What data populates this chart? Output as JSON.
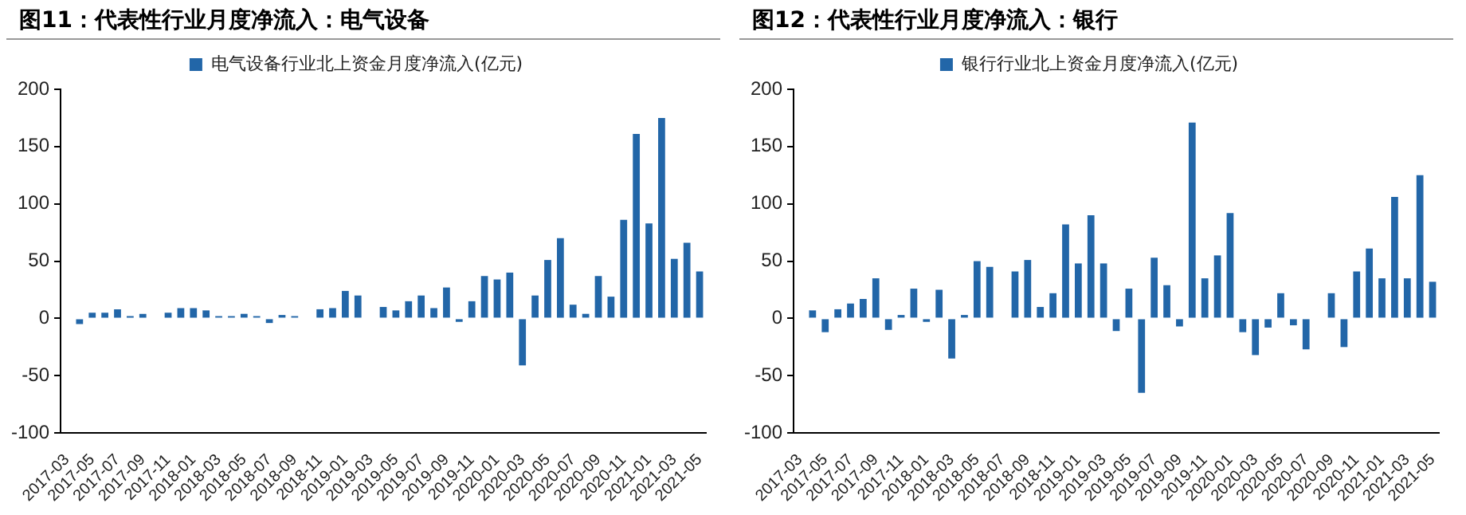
{
  "chart_data": [
    {
      "type": "bar",
      "title": "图11：代表性行业月度净流入：电气设备",
      "categories": [
        "2017-03",
        null,
        "2017-05",
        null,
        "2017-07",
        null,
        "2017-09",
        null,
        "2017-11",
        null,
        "2018-01",
        null,
        "2018-03",
        null,
        "2018-05",
        null,
        "2018-07",
        null,
        "2018-09",
        null,
        "2018-11",
        null,
        "2019-01",
        null,
        "2019-03",
        null,
        "2019-05",
        null,
        "2019-07",
        null,
        "2019-09",
        null,
        "2019-11",
        null,
        "2020-01",
        null,
        "2020-03",
        null,
        "2020-05",
        null,
        "2020-07",
        null,
        "2020-09",
        null,
        "2020-11",
        null,
        "2021-01",
        null,
        "2021-03",
        null,
        "2021-05"
      ],
      "series": [
        {
          "name": "电气设备行业北上资金月度净流入(亿元)",
          "color": "#2266a8",
          "values": [
            0,
            -5,
            5,
            5,
            8,
            2,
            4,
            0,
            5,
            9,
            9,
            7,
            2,
            2,
            4,
            2,
            -4,
            3,
            2,
            0,
            8,
            9,
            24,
            20,
            0,
            10,
            7,
            15,
            20,
            9,
            27,
            -3,
            15,
            37,
            34,
            40,
            -41,
            20,
            51,
            70,
            12,
            4,
            37,
            19,
            86,
            161,
            83,
            175,
            52,
            66,
            41
          ]
        }
      ],
      "ylim": [
        -100,
        200
      ],
      "yticks": [
        -100,
        -50,
        0,
        50,
        100,
        150,
        200
      ],
      "grid": false,
      "legend": "top"
    },
    {
      "type": "bar",
      "title": "图12：代表性行业月度净流入：银行",
      "categories": [
        "2017-03",
        null,
        "2017-05",
        null,
        "2017-07",
        null,
        "2017-09",
        null,
        "2017-11",
        null,
        "2018-01",
        null,
        "2018-03",
        null,
        "2018-05",
        null,
        "2018-07",
        null,
        "2018-09",
        null,
        "2018-11",
        null,
        "2019-01",
        null,
        "2019-03",
        null,
        "2019-05",
        null,
        "2019-07",
        null,
        "2019-09",
        null,
        "2019-11",
        null,
        "2020-01",
        null,
        "2020-03",
        null,
        "2020-05",
        null,
        "2020-07",
        null,
        "2020-09",
        null,
        "2020-11",
        null,
        "2021-01",
        null,
        "2021-03",
        null,
        "2021-05"
      ],
      "series": [
        {
          "name": "银行行业北上资金月度净流入(亿元)",
          "color": "#2266a8",
          "values": [
            0,
            7,
            -12,
            8,
            13,
            17,
            35,
            -10,
            3,
            26,
            -3,
            25,
            -35,
            3,
            50,
            45,
            0,
            41,
            51,
            10,
            22,
            82,
            48,
            90,
            48,
            -11,
            26,
            -65,
            53,
            29,
            -7,
            171,
            35,
            55,
            92,
            -12,
            -32,
            -8,
            22,
            -6,
            -27,
            0,
            22,
            -25,
            41,
            61,
            35,
            106,
            35,
            125,
            32
          ]
        }
      ],
      "ylim": [
        -100,
        200
      ],
      "yticks": [
        -100,
        -50,
        0,
        50,
        100,
        150,
        200
      ],
      "grid": false,
      "legend": "top"
    }
  ]
}
